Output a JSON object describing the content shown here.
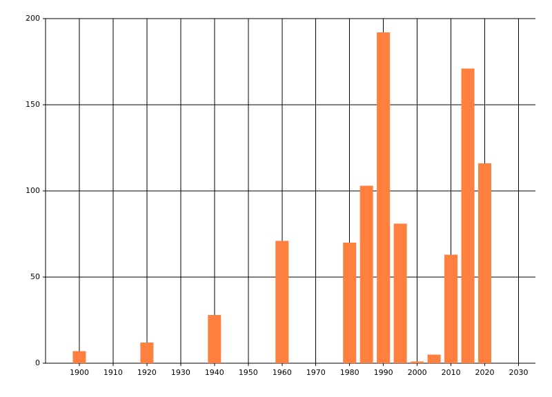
{
  "chart_data": {
    "type": "bar",
    "x": [
      1900,
      1920,
      1940,
      1960,
      1980,
      1985,
      1990,
      1995,
      2000,
      2005,
      2010,
      2015,
      2020
    ],
    "values": [
      7,
      12,
      28,
      71,
      70,
      103,
      192,
      81,
      1,
      5,
      63,
      171,
      116
    ],
    "color": "#ff7f3f",
    "xlim": [
      1890,
      2035
    ],
    "xticks": [
      1900,
      1910,
      1920,
      1930,
      1940,
      1950,
      1960,
      1970,
      1980,
      1990,
      2000,
      2010,
      2020,
      2030
    ],
    "ylim": [
      0,
      200
    ],
    "yticks": [
      0,
      50,
      100,
      150,
      200
    ],
    "grid": true
  }
}
